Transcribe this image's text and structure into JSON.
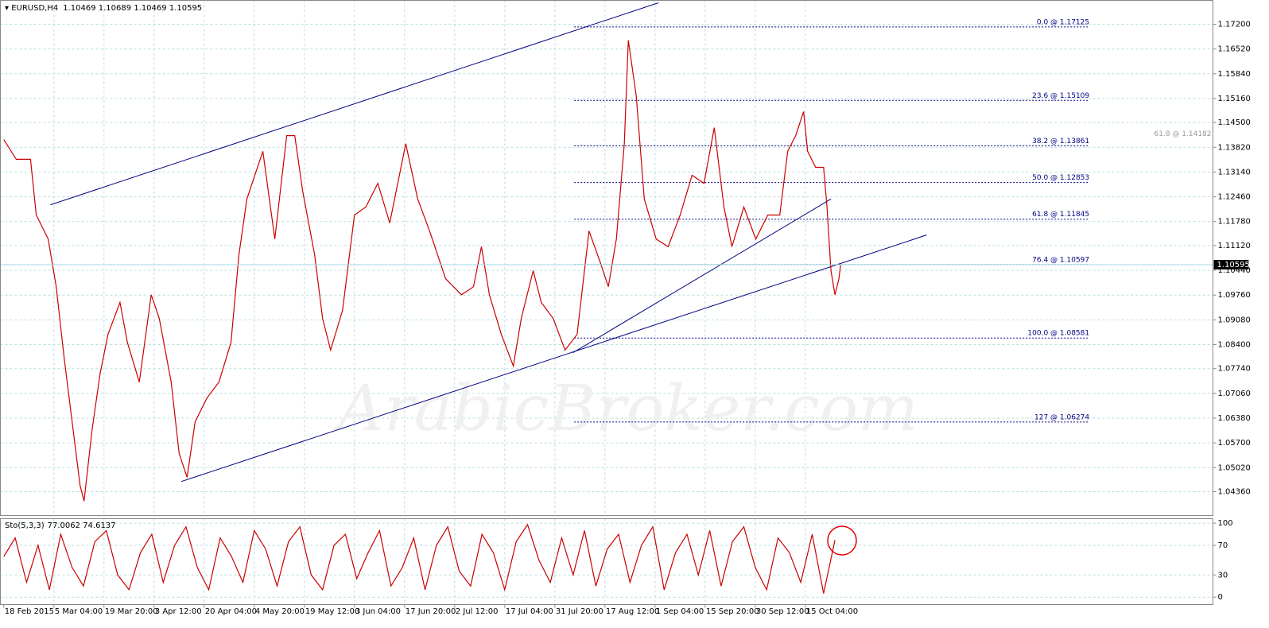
{
  "chart_data": [
    {
      "type": "line",
      "title": "EURUSD,H4",
      "subtitle": "1.10469 1.10689 1.10469 1.10595",
      "watermark": "ArabicBroker.com",
      "xlim": [
        -6,
        2124
      ],
      "xticks": [
        {
          "value": 0,
          "label": "18 Feb 2015"
        },
        {
          "value": 88,
          "label": "5 Mar 04:00"
        },
        {
          "value": 176,
          "label": "19 Mar 20:00"
        },
        {
          "value": 264,
          "label": "3 Apr 12:00"
        },
        {
          "value": 352,
          "label": "20 Apr 04:00"
        },
        {
          "value": 440,
          "label": "4 May 20:00"
        },
        {
          "value": 528,
          "label": "19 May 12:00"
        },
        {
          "value": 616,
          "label": "3 Jun 04:00"
        },
        {
          "value": 704,
          "label": "17 Jun 20:00"
        },
        {
          "value": 792,
          "label": "2 Jul 12:00"
        },
        {
          "value": 880,
          "label": "17 Jul 04:00"
        },
        {
          "value": 968,
          "label": "31 Jul 20:00"
        },
        {
          "value": 1056,
          "label": "17 Aug 12:00"
        },
        {
          "value": 1144,
          "label": "1 Sep 04:00"
        },
        {
          "value": 1232,
          "label": "15 Sep 20:00"
        },
        {
          "value": 1320,
          "label": "30 Sep 12:00"
        },
        {
          "value": 1408,
          "label": "15 Oct 04:00"
        }
      ],
      "ylim": [
        1.03705,
        1.17855
      ],
      "yticks": [
        {
          "value": 1.172,
          "label": "1.17200"
        },
        {
          "value": 1.1652,
          "label": "1.16520"
        },
        {
          "value": 1.1584,
          "label": "1.15840"
        },
        {
          "value": 1.1516,
          "label": "1.15160"
        },
        {
          "value": 1.145,
          "label": "1.14500"
        },
        {
          "value": 1.1382,
          "label": "1.13820"
        },
        {
          "value": 1.1314,
          "label": "1.13140"
        },
        {
          "value": 1.1246,
          "label": "1.12460"
        },
        {
          "value": 1.1178,
          "label": "1.11780"
        },
        {
          "value": 1.1112,
          "label": "1.11120"
        },
        {
          "value": 1.1044,
          "label": "1.10440"
        },
        {
          "value": 1.0976,
          "label": "1.09760"
        },
        {
          "value": 1.0908,
          "label": "1.09080"
        },
        {
          "value": 1.084,
          "label": "1.08400"
        },
        {
          "value": 1.0774,
          "label": "1.07740"
        },
        {
          "value": 1.0706,
          "label": "1.07060"
        },
        {
          "value": 1.0638,
          "label": "1.06380"
        },
        {
          "value": 1.057,
          "label": "1.05700"
        },
        {
          "value": 1.0502,
          "label": "1.05020"
        },
        {
          "value": 1.0436,
          "label": "1.04360"
        }
      ],
      "grid": true,
      "series": [
        {
          "color": "#cc0000",
          "x": [
            0,
            22,
            47,
            57,
            78,
            92,
            106,
            120,
            134,
            141,
            155,
            169,
            183,
            204,
            217,
            238,
            259,
            273,
            294,
            308,
            322,
            336,
            357,
            378,
            399,
            413,
            427,
            455,
            476,
            497,
            511,
            525,
            546,
            560,
            574,
            595,
            616,
            636,
            657,
            678,
            706,
            727,
            748,
            776,
            804,
            825,
            839,
            853,
            874,
            895,
            909,
            930,
            944,
            965,
            986,
            1007,
            1028,
            1048,
            1062,
            1076,
            1090,
            1097,
            1111,
            1125,
            1146,
            1167,
            1188,
            1209,
            1230,
            1248,
            1265,
            1279,
            1300,
            1321,
            1342,
            1363,
            1377,
            1391,
            1405,
            1412,
            1426,
            1440,
            1446,
            1453,
            1460,
            1467,
            1470
          ],
          "values": [
            1.1403,
            1.1349,
            1.1349,
            1.1196,
            1.113,
            1.0999,
            1.0803,
            1.0628,
            1.0453,
            1.041,
            1.0606,
            1.0759,
            1.0868,
            1.0956,
            1.0846,
            1.0737,
            1.0977,
            1.0912,
            1.0737,
            1.0541,
            1.0475,
            1.0628,
            1.0694,
            1.0737,
            1.0846,
            1.1087,
            1.124,
            1.1371,
            1.113,
            1.1414,
            1.1414,
            1.1261,
            1.1087,
            1.0912,
            1.0825,
            1.0934,
            1.1196,
            1.1218,
            1.1283,
            1.1174,
            1.1392,
            1.124,
            1.1152,
            1.1021,
            1.0977,
            1.0999,
            1.1109,
            1.0977,
            1.0868,
            1.0781,
            1.0912,
            1.1043,
            1.0956,
            1.0912,
            1.0825,
            1.0868,
            1.1152,
            1.1065,
            1.0999,
            1.113,
            1.1392,
            1.1676,
            1.1523,
            1.124,
            1.113,
            1.1109,
            1.1196,
            1.1305,
            1.1283,
            1.1436,
            1.1218,
            1.1109,
            1.1218,
            1.113,
            1.1196,
            1.1196,
            1.1371,
            1.1414,
            1.148,
            1.1371,
            1.1327,
            1.1327,
            1.1218,
            1.1043,
            1.0977,
            1.1021,
            1.106
          ]
        }
      ],
      "trendlines": [
        {
          "x": [
            82,
            1150
          ],
          "values": [
            1.1224,
            1.1779
          ],
          "color": "#000080"
        },
        {
          "x": [
            312,
            1621
          ],
          "values": [
            1.0464,
            1.1141
          ],
          "color": "#000080"
        },
        {
          "x": [
            1000,
            1453
          ],
          "values": [
            1.0818,
            1.124
          ],
          "color": "#000080"
        }
      ],
      "fib_x": [
        1002,
        1907
      ],
      "fib_levels": [
        {
          "label": "0.0 @ 1.17125",
          "value": 1.17125
        },
        {
          "label": "23.6 @ 1.15109",
          "value": 1.15109
        },
        {
          "label": "38.2 @ 1.13861",
          "value": 1.13861
        },
        {
          "label": "50.0 @ 1.12853",
          "value": 1.12853
        },
        {
          "label": "61.8 @ 1.11845",
          "value": 1.11845
        },
        {
          "label": "76.4 @ 1.10597",
          "value": 1.10597
        },
        {
          "label": "100.0 @ 1.08581",
          "value": 1.08581
        },
        {
          "label": "127 @ 1.06274",
          "value": 1.06274
        }
      ],
      "fib_color": "#000080",
      "annotations": [
        {
          "label": "61.8 @ 1.14182",
          "value": 1.14182,
          "color": "#999999"
        }
      ],
      "last_price": {
        "value": 1.10595,
        "label": "1.10595"
      }
    },
    {
      "type": "line",
      "title": "Sto(5,3,3)",
      "subtitle": "77.0062 74.6137",
      "xlim": [
        -6,
        2124
      ],
      "ylim": [
        -10,
        106
      ],
      "yticks": [
        0,
        30,
        70,
        100
      ],
      "grid": true,
      "series": [
        {
          "color": "#cc0000",
          "x": [
            0,
            20,
            40,
            60,
            80,
            100,
            120,
            140,
            160,
            180,
            200,
            220,
            240,
            260,
            280,
            300,
            320,
            340,
            360,
            380,
            400,
            420,
            440,
            460,
            480,
            500,
            520,
            540,
            560,
            580,
            600,
            620,
            640,
            660,
            680,
            700,
            720,
            740,
            760,
            780,
            800,
            820,
            840,
            860,
            880,
            900,
            920,
            940,
            960,
            980,
            1000,
            1020,
            1040,
            1060,
            1080,
            1100,
            1120,
            1140,
            1160,
            1180,
            1200,
            1220,
            1240,
            1260,
            1280,
            1300,
            1320,
            1340,
            1360,
            1380,
            1400,
            1420,
            1440,
            1460
          ],
          "values": [
            55,
            80,
            20,
            70,
            10,
            85,
            40,
            15,
            75,
            90,
            30,
            10,
            60,
            85,
            20,
            70,
            95,
            40,
            10,
            80,
            55,
            20,
            90,
            65,
            15,
            75,
            95,
            30,
            10,
            70,
            85,
            25,
            60,
            90,
            15,
            40,
            80,
            10,
            70,
            95,
            35,
            15,
            85,
            60,
            10,
            75,
            98,
            50,
            20,
            80,
            30,
            90,
            15,
            65,
            85,
            20,
            70,
            95,
            10,
            60,
            85,
            30,
            90,
            15,
            75,
            95,
            40,
            10,
            80,
            60,
            20,
            85,
            5,
            77
          ]
        }
      ]
    }
  ]
}
